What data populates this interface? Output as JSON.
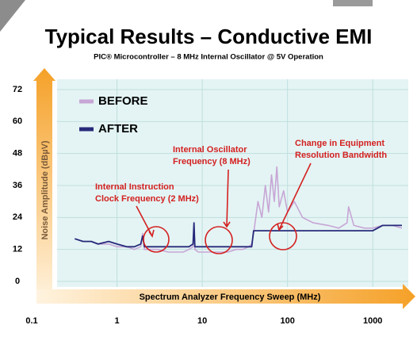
{
  "chart_data": {
    "type": "line",
    "title": "Typical Results – Conductive EMI",
    "subtitle": "PIC® Microcontroller – 8 MHz Internal Oscillator @ 5V Operation",
    "y_label": "Noise Amplitude (dBµV)",
    "x_label": "Spectrum Analyzer Frequency Sweep (MHz)",
    "x_scale": "log",
    "xlim": [
      0.1,
      2500
    ],
    "xticks": [
      0.1,
      1,
      10,
      100,
      1000
    ],
    "ylim": [
      0,
      72
    ],
    "yticks": [
      0,
      12,
      24,
      36,
      48,
      60,
      72
    ],
    "grid": true,
    "legend": "upper left",
    "x": [
      0.32,
      0.4,
      0.5,
      0.6,
      0.8,
      1,
      1.3,
      1.6,
      1.9,
      2,
      2.1,
      2.5,
      3,
      4,
      5,
      6,
      7,
      7.8,
      8,
      8.2,
      9,
      10,
      12,
      15,
      20,
      25,
      30,
      35,
      38,
      40,
      45,
      50,
      55,
      60,
      65,
      70,
      75,
      80,
      90,
      100,
      120,
      150,
      200,
      300,
      400,
      500,
      520,
      600,
      800,
      1000,
      1300,
      1700,
      2200
    ],
    "series": [
      {
        "name": "BEFORE",
        "color": "#c7a6d6",
        "values": [
          16,
          15,
          15,
          14,
          14,
          13,
          13,
          12,
          13,
          18,
          12,
          12,
          12,
          11,
          11,
          11,
          12,
          13,
          21,
          12,
          11,
          11,
          11,
          11,
          11,
          12,
          12,
          13,
          14,
          18,
          30,
          24,
          36,
          26,
          40,
          30,
          43,
          28,
          34,
          26,
          30,
          24,
          22,
          21,
          20,
          22,
          28,
          21,
          20,
          20,
          21,
          21,
          20
        ]
      },
      {
        "name": "AFTER",
        "color": "#262a7a",
        "values": [
          16,
          15,
          15,
          14,
          15,
          14,
          13,
          13,
          14,
          17,
          13,
          13,
          13,
          13,
          13,
          13,
          13,
          14,
          22,
          13,
          13,
          13,
          13,
          13,
          13,
          13,
          13,
          13,
          13,
          19,
          19,
          19,
          19,
          19,
          19,
          19,
          19,
          19,
          19,
          19,
          19,
          19,
          19,
          19,
          19,
          19,
          19,
          19,
          19,
          19,
          21,
          21,
          21
        ]
      }
    ],
    "annotations": [
      {
        "lines": [
          "Internal Instruction",
          "Clock Frequency (2 MHz)"
        ]
      },
      {
        "lines": [
          "Internal Oscillator",
          "Frequency (8 MHz)"
        ]
      },
      {
        "lines": [
          "Change in Equipment",
          "Resolution Bandwidth"
        ]
      }
    ]
  }
}
